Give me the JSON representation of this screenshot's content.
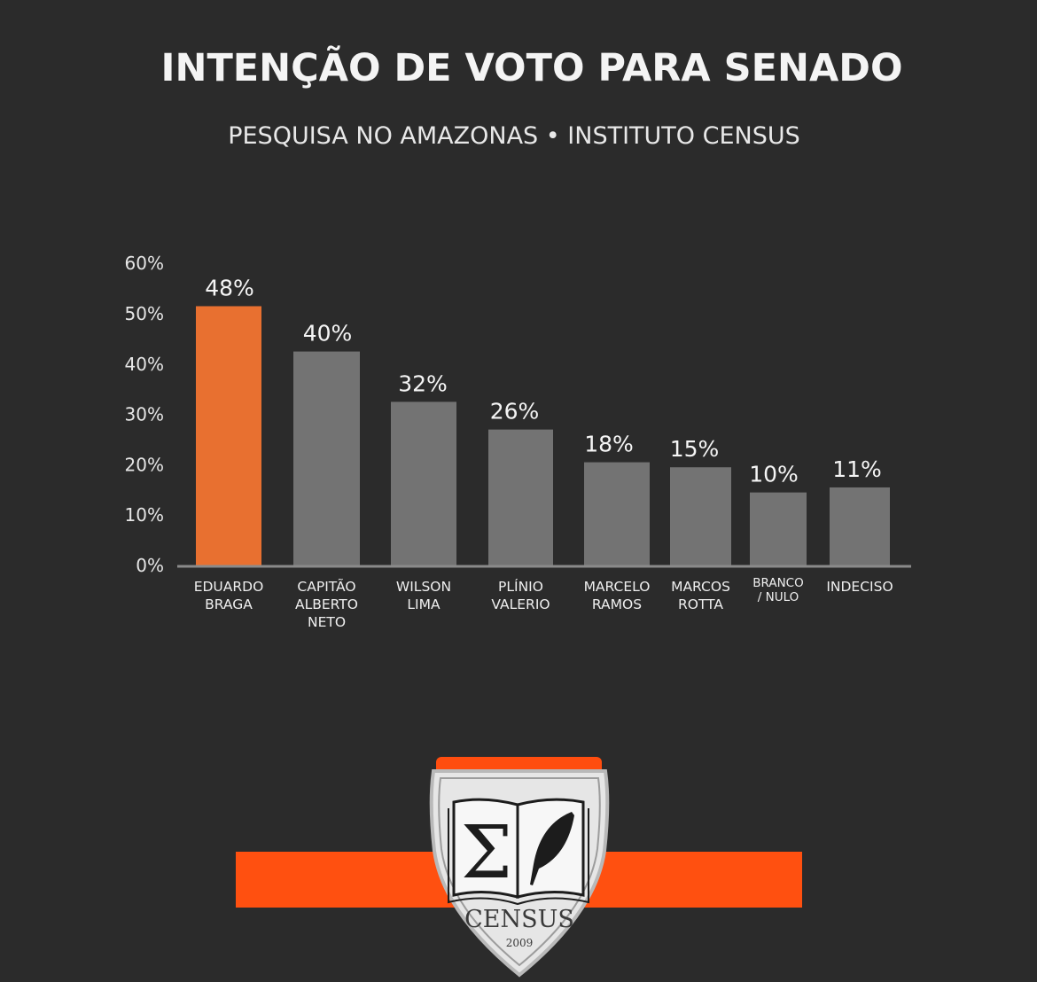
{
  "header": {
    "title": "INTENÇÃO DE VOTO PARA SENADO",
    "subtitle": "PESQUISA NO AMAZONAS • INSTITUTO CENSUS"
  },
  "chart_data": {
    "type": "bar",
    "categories": [
      [
        "EDUARDO",
        "BRAGA"
      ],
      [
        "CAPITÃO",
        "ALBERTO",
        "NETO"
      ],
      [
        "WILSON",
        "LIMA"
      ],
      [
        "PLÍNIO",
        "VALERIO"
      ],
      [
        "MARCELO",
        "RAMOS"
      ],
      [
        "MARCOS",
        "ROTTA"
      ],
      [
        "BRANCO",
        "/ NULO"
      ],
      [
        "INDECISO"
      ]
    ],
    "values": [
      48,
      40,
      32,
      26,
      18,
      15,
      10,
      11
    ],
    "value_labels": [
      "48%",
      "40%",
      "32%",
      "26%",
      "18%",
      "15%",
      "10%",
      "11%"
    ],
    "bar_heights": [
      51.5,
      42.5,
      32.5,
      27,
      20.5,
      19.5,
      14.5,
      15.5
    ],
    "yticks": [
      "0%",
      "10%",
      "20%",
      "30%",
      "40%",
      "50%",
      "60%"
    ],
    "ylim": [
      0,
      60
    ],
    "grid": false,
    "colors": {
      "highlight": "#e87030",
      "default": "#737373",
      "axis": "#8a8a8a"
    }
  },
  "logo": {
    "name": "CENSUS",
    "year": "2009",
    "colors": {
      "band": "#ff5010",
      "tab": "#ff4d0f",
      "shield": "#e6e6e6",
      "shield_edge": "#b9b9b9"
    }
  }
}
